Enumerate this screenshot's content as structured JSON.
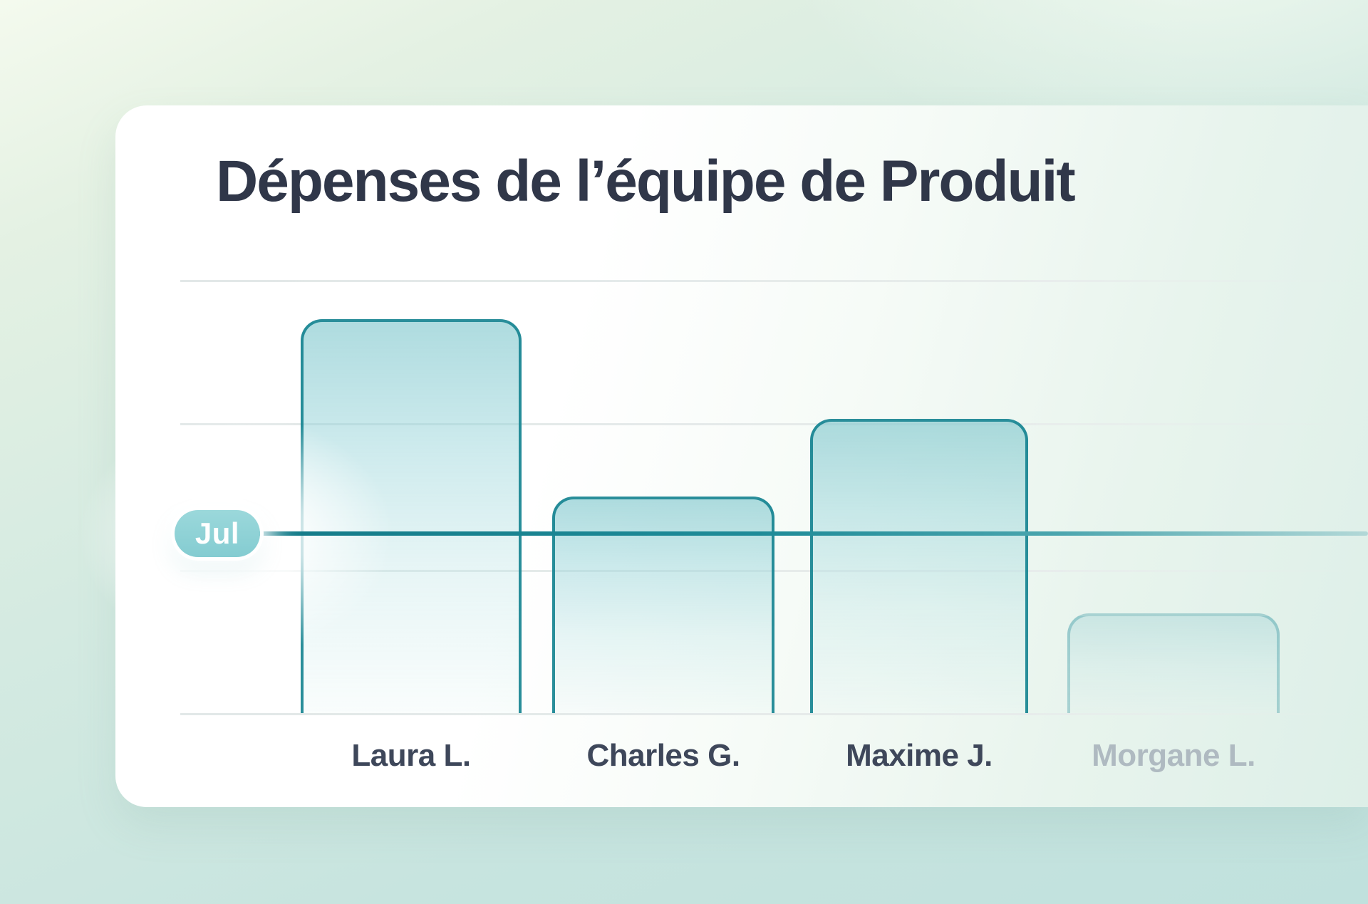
{
  "chart_data": {
    "type": "bar",
    "title": "Dépenses de l’équipe de Produit",
    "categories": [
      "Laura L.",
      "Charles G.",
      "Maxime J.",
      "Morgane L."
    ],
    "values": [
      91,
      50,
      68,
      23
    ],
    "muted": [
      false,
      false,
      false,
      true
    ],
    "marker": {
      "label": "Jul",
      "value": 42
    },
    "xlabel": "",
    "ylabel": "",
    "ylim": [
      0,
      100
    ],
    "gridline_values": [
      100,
      67,
      33,
      0
    ],
    "legend": "none",
    "grid": "on"
  },
  "colors": {
    "accent_teal": "#1e8b98",
    "bar_fill_top": "#8ccfd4",
    "badge_fill": "#8ed1d5",
    "badge_text": "#ffffff",
    "card_background": "#ffffff",
    "page_background_teal": "#c2e2de",
    "page_background_mint": "#f4faee",
    "title_text": "#303749",
    "label_text": "#3e475a",
    "label_muted_text": "#afbac1",
    "gridline": "#e6ebea"
  }
}
